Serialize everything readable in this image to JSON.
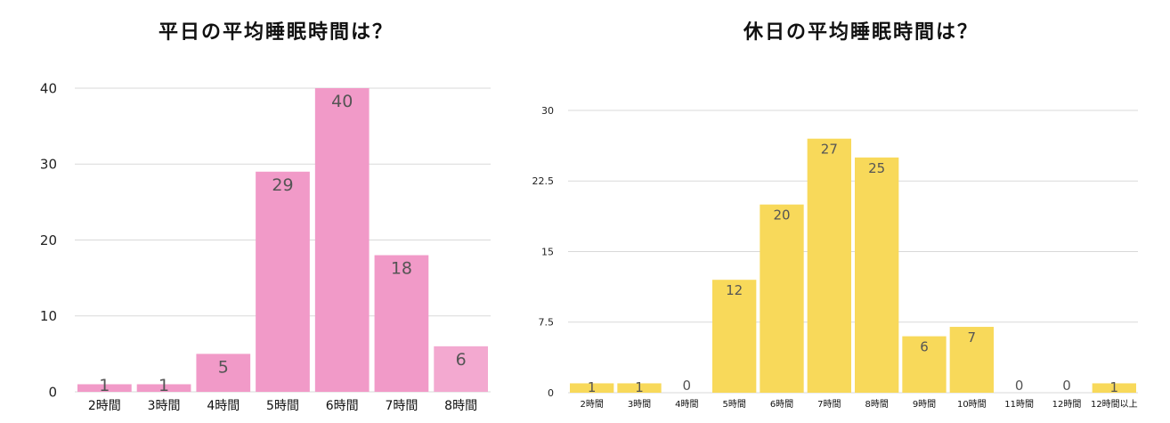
{
  "chart_data": [
    {
      "type": "bar",
      "title": "平日の平均睡眠時間は？",
      "categories": [
        "2時間",
        "3時間",
        "4時間",
        "5時間",
        "6時間",
        "7時間",
        "8時間"
      ],
      "values": [
        1,
        1,
        5,
        29,
        40,
        18,
        6
      ],
      "yticks": [
        "0",
        "10",
        "20",
        "30",
        "40"
      ],
      "ylim": [
        0,
        40
      ],
      "grid": true,
      "legend": "none",
      "colors": {
        "bar": "#f19ac8",
        "bar_last": "#f3a9d0"
      }
    },
    {
      "type": "bar",
      "title": "休日の平均睡眠時間は？",
      "categories": [
        "2時間",
        "3時間",
        "4時間",
        "5時間",
        "6時間",
        "7時間",
        "8時間",
        "9時間",
        "10時間",
        "11時間",
        "12時間",
        "12時間以上"
      ],
      "values": [
        1,
        1,
        0,
        12,
        20,
        27,
        25,
        6,
        7,
        0,
        0,
        1
      ],
      "yticks": [
        "0",
        "7.5",
        "15",
        "22.5",
        "30"
      ],
      "ylim": [
        0,
        30
      ],
      "grid": true,
      "legend": "none",
      "colors": {
        "bar": "#f8d95a"
      }
    }
  ]
}
